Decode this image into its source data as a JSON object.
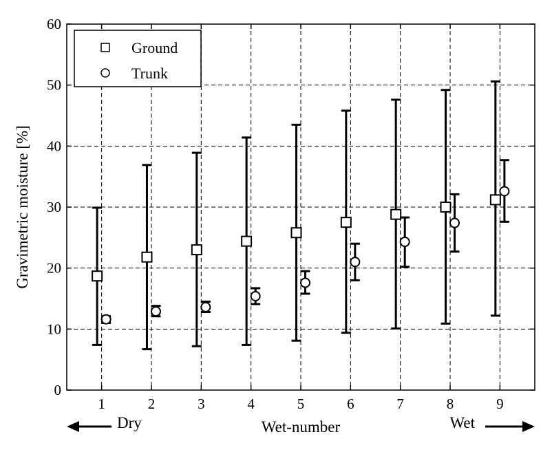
{
  "chart_data": {
    "type": "scatter",
    "xlabel": "Wet-number",
    "ylabel": "Gravimetric moisture [%]",
    "x_ticks": [
      "1",
      "2",
      "3",
      "4",
      "5",
      "6",
      "7",
      "8",
      "9"
    ],
    "y_ticks": [
      "0",
      "10",
      "20",
      "30",
      "40",
      "50",
      "60"
    ],
    "xlim": [
      0.3,
      9.7
    ],
    "ylim": [
      0,
      60
    ],
    "grid": true,
    "legend_position": "top-left",
    "annotations": {
      "dry": "Dry",
      "wet": "Wet"
    },
    "series": [
      {
        "name": "Ground",
        "marker": "square",
        "x": [
          1,
          2,
          3,
          4,
          5,
          6,
          7,
          8,
          9
        ],
        "y": [
          18.7,
          21.8,
          23.0,
          24.4,
          25.8,
          27.5,
          28.8,
          30.0,
          31.2
        ],
        "err_low": [
          7.4,
          6.7,
          7.2,
          7.4,
          8.1,
          9.4,
          10.1,
          10.9,
          12.2
        ],
        "err_high": [
          29.9,
          36.9,
          38.9,
          41.4,
          43.5,
          45.8,
          47.6,
          49.2,
          50.6
        ]
      },
      {
        "name": "Trunk",
        "marker": "circle",
        "x": [
          1,
          2,
          3,
          4,
          5,
          6,
          7,
          8,
          9
        ],
        "y": [
          11.6,
          12.9,
          13.6,
          15.4,
          17.6,
          21.0,
          24.3,
          27.4,
          32.6
        ],
        "err_low": [
          11.0,
          12.1,
          12.8,
          14.1,
          15.8,
          18.0,
          20.2,
          22.7,
          27.6
        ],
        "err_high": [
          12.1,
          13.8,
          14.5,
          16.7,
          19.5,
          24.0,
          28.3,
          32.1,
          37.7
        ]
      }
    ]
  }
}
